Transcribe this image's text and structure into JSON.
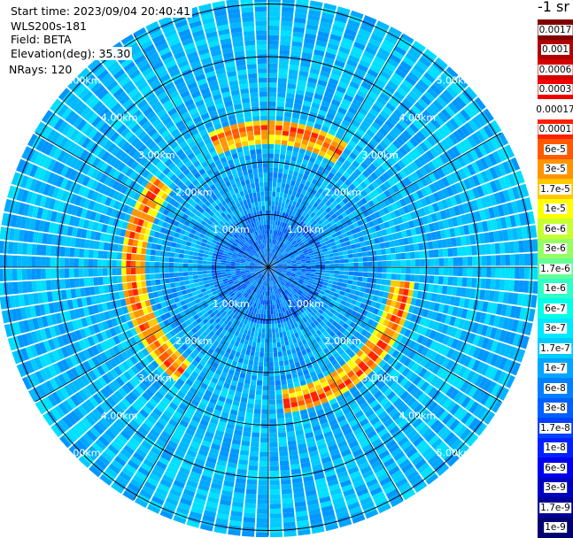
{
  "header": {
    "start_time": "Start time: 2023/09/04 20:40:41",
    "instrument": "WLS200s-181",
    "field": "Field: BETA",
    "elevation": "Elevation(deg): 35.30",
    "nrays": "NRays: 120"
  },
  "colorbar": {
    "unit": "-1 sr",
    "entries": [
      {
        "label": "0.0017",
        "color": "#800000"
      },
      {
        "label": "0.001",
        "color": "#b00000"
      },
      {
        "label": "0.0006",
        "color": "#d40000"
      },
      {
        "label": "0.0003",
        "color": "#f00000"
      },
      {
        "label": "0.00017",
        "color": "#ffffff"
      },
      {
        "label": "0.0001",
        "color": "#ff2000"
      },
      {
        "label": "6e-5",
        "color": "#ff5a00"
      },
      {
        "label": "3e-5",
        "color": "#ff9400"
      },
      {
        "label": "1.7e-5",
        "color": "#ffc800"
      },
      {
        "label": "1e-5",
        "color": "#ffff00"
      },
      {
        "label": "6e-6",
        "color": "#c8ff30"
      },
      {
        "label": "3e-6",
        "color": "#96ff64"
      },
      {
        "label": "1.7e-6",
        "color": "#64ff96"
      },
      {
        "label": "1e-6",
        "color": "#30ffc8"
      },
      {
        "label": "6e-7",
        "color": "#00ffe6"
      },
      {
        "label": "3e-7",
        "color": "#00e8ff"
      },
      {
        "label": "1.7e-7",
        "color": "#00ccff"
      },
      {
        "label": "1e-7",
        "color": "#00a6ff"
      },
      {
        "label": "6e-8",
        "color": "#0080ff"
      },
      {
        "label": "3e-8",
        "color": "#0060ff"
      },
      {
        "label": "1.7e-8",
        "color": "#0040ff"
      },
      {
        "label": "1e-8",
        "color": "#0020ff"
      },
      {
        "label": "6e-9",
        "color": "#0000ee"
      },
      {
        "label": "3e-9",
        "color": "#0000c0"
      },
      {
        "label": "1.7e-9",
        "color": "#000096"
      },
      {
        "label": "1e-9",
        "color": "#000070"
      }
    ]
  },
  "chart_data": {
    "type": "heatmap",
    "projection": "polar-ppi",
    "range_rings_km": [
      1,
      2,
      3,
      4,
      5
    ],
    "ring_labels": [
      "1.00km",
      "2.00km",
      "3.00km",
      "4.00km",
      "5.00km"
    ],
    "max_range_km": 5.1,
    "nrays": 120,
    "spoke_azimuths_deg": [
      0,
      30,
      60,
      90,
      120,
      150,
      180,
      210,
      240,
      270,
      300,
      330
    ],
    "background_level": "1.7e-7",
    "aerosol_layer": {
      "range_km": 2.6,
      "peak_values": [
        "0.00017",
        "0.0001",
        "6e-5",
        "3e-5",
        "1.7e-5"
      ],
      "azimuth_sectors_deg": [
        [
          0,
          32
        ],
        [
          95,
          175
        ],
        [
          220,
          310
        ],
        [
          335,
          360
        ]
      ]
    }
  }
}
